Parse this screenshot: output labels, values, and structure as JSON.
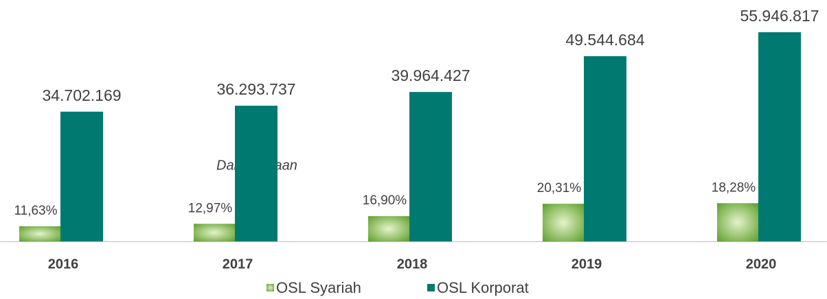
{
  "chart_data": {
    "type": "bar",
    "categories": [
      "2016",
      "2017",
      "2018",
      "2019",
      "2020"
    ],
    "series": [
      {
        "name": "OSL Syariah",
        "color": "#5e9e2c",
        "values": [
          11.63,
          12.97,
          16.9,
          20.31,
          18.28
        ],
        "value_labels": [
          "11,63%",
          "12,97%",
          "16,90%",
          "20,31%",
          "18,28%"
        ]
      },
      {
        "name": "OSL Korporat",
        "color": "#007a70",
        "values": [
          34702169,
          36293737,
          39964427,
          49544684,
          55946817
        ],
        "value_labels": [
          "34.702.169",
          "36.293.737",
          "39.964.427",
          "49.544.684",
          "55.946.817"
        ]
      }
    ],
    "annotation": "Dalam jutaan"
  }
}
